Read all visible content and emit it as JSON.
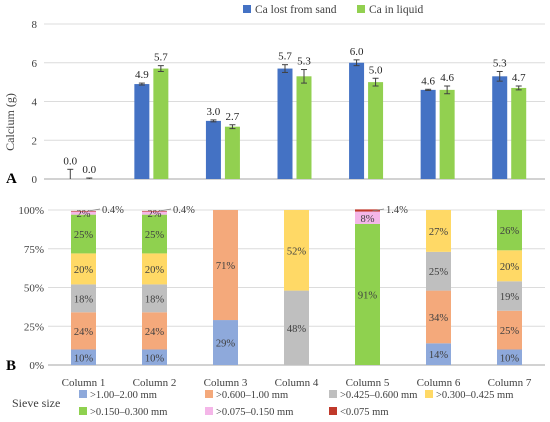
{
  "panel_a": {
    "letter": "A",
    "legend": [
      {
        "label": "Ca lost from sand",
        "color": "#4472C4"
      },
      {
        "label": "Ca in liquid",
        "color": "#92D050"
      }
    ]
  },
  "panel_b": {
    "letter": "B",
    "legend_title": "Sieve size",
    "legend": [
      {
        "label": ">1.00–2.00 mm",
        "color": "#8EA9DB"
      },
      {
        "label": ">0.600–1.00 mm",
        "color": "#F4A97B"
      },
      {
        "label": ">0.425–0.600 mm",
        "color": "#BFBFBF"
      },
      {
        "label": ">0.300–0.425 mm",
        "color": "#FFD966"
      },
      {
        "label": ">0.150–0.300 mm",
        "color": "#8FD14F"
      },
      {
        "label": ">0.075–0.150 mm",
        "color": "#F4B6E8"
      },
      {
        "label": "<0.075 mm",
        "color": "#C0392B"
      }
    ]
  },
  "chart_data": [
    {
      "type": "bar",
      "ylabel": "Calcium (g)",
      "ylim": [
        0,
        8
      ],
      "yticks": [
        0,
        2,
        4,
        6,
        8
      ],
      "grid": true,
      "legend_position": "top",
      "error_bars": true,
      "categories": [
        "Column 1",
        "Column 2",
        "Column 3",
        "Column 4",
        "Column 5",
        "Column 6",
        "Column 7"
      ],
      "series": [
        {
          "name": "Ca lost from sand",
          "color": "#4472C4",
          "values": [
            0.0,
            4.9,
            3.0,
            5.7,
            6.0,
            4.6,
            5.3
          ],
          "labels": [
            "0.0",
            "4.9",
            "3.0",
            "5.7",
            "6.0",
            "4.6",
            "5.3"
          ],
          "errors": [
            0.5,
            0.05,
            0.05,
            0.2,
            0.15,
            0.03,
            0.25
          ]
        },
        {
          "name": "Ca in liquid",
          "color": "#92D050",
          "values": [
            0.0,
            5.7,
            2.7,
            5.3,
            5.0,
            4.6,
            4.7
          ],
          "labels": [
            "0.0",
            "5.7",
            "2.7",
            "5.3",
            "5.0",
            "4.6",
            "4.7"
          ],
          "errors": [
            0.05,
            0.15,
            0.1,
            0.35,
            0.2,
            0.2,
            0.1
          ]
        }
      ]
    },
    {
      "type": "bar",
      "stacked": true,
      "ylim": [
        0,
        100
      ],
      "yticks": [
        "0%",
        "25%",
        "50%",
        "75%",
        "100%"
      ],
      "grid": true,
      "legend_position": "bottom",
      "categories": [
        "Column 1",
        "Column 2",
        "Column 3",
        "Column 4",
        "Column 5",
        "Column 6",
        "Column 7"
      ],
      "series": [
        {
          "name": ">1.00–2.00 mm",
          "color": "#8EA9DB",
          "values": [
            10,
            10,
            29,
            0,
            0,
            14,
            10
          ]
        },
        {
          "name": ">0.600–1.00 mm",
          "color": "#F4A97B",
          "values": [
            24,
            24,
            71,
            0,
            0,
            34,
            25
          ]
        },
        {
          "name": ">0.425–0.600 mm",
          "color": "#BFBFBF",
          "values": [
            18,
            18,
            0,
            48,
            0,
            25,
            19
          ]
        },
        {
          "name": ">0.300–0.425 mm",
          "color": "#FFD966",
          "values": [
            20,
            20,
            0,
            52,
            0,
            27,
            20
          ]
        },
        {
          "name": ">0.150–0.300 mm",
          "color": "#8FD14F",
          "values": [
            25,
            25,
            0,
            0,
            91,
            0,
            26
          ]
        },
        {
          "name": ">0.075–0.150 mm",
          "color": "#F4B6E8",
          "values": [
            2,
            2,
            0,
            0,
            8,
            0,
            0
          ]
        },
        {
          "name": "<0.075 mm",
          "color": "#C0392B",
          "values": [
            0.4,
            0.4,
            0,
            0,
            1.4,
            0,
            0
          ]
        }
      ],
      "segment_labels": [
        [
          "10%",
          "24%",
          "18%",
          "20%",
          "25%",
          "2%",
          ""
        ],
        [
          "10%",
          "24%",
          "18%",
          "20%",
          "25%",
          "2%",
          ""
        ],
        [
          "29%",
          "71%",
          "",
          "",
          "",
          "",
          ""
        ],
        [
          "",
          "",
          "48%",
          "52%",
          "",
          "",
          ""
        ],
        [
          "",
          "",
          "",
          "",
          "91%",
          "8%",
          ""
        ],
        [
          "14%",
          "34%",
          "25%",
          "27%",
          "",
          "",
          ""
        ],
        [
          "10%",
          "25%",
          "19%",
          "20%",
          "26%",
          "",
          ""
        ]
      ],
      "callouts": [
        {
          "column": 0,
          "text": "0.4%"
        },
        {
          "column": 1,
          "text": "0.4%"
        },
        {
          "column": 4,
          "text": "1.4%"
        }
      ]
    }
  ]
}
